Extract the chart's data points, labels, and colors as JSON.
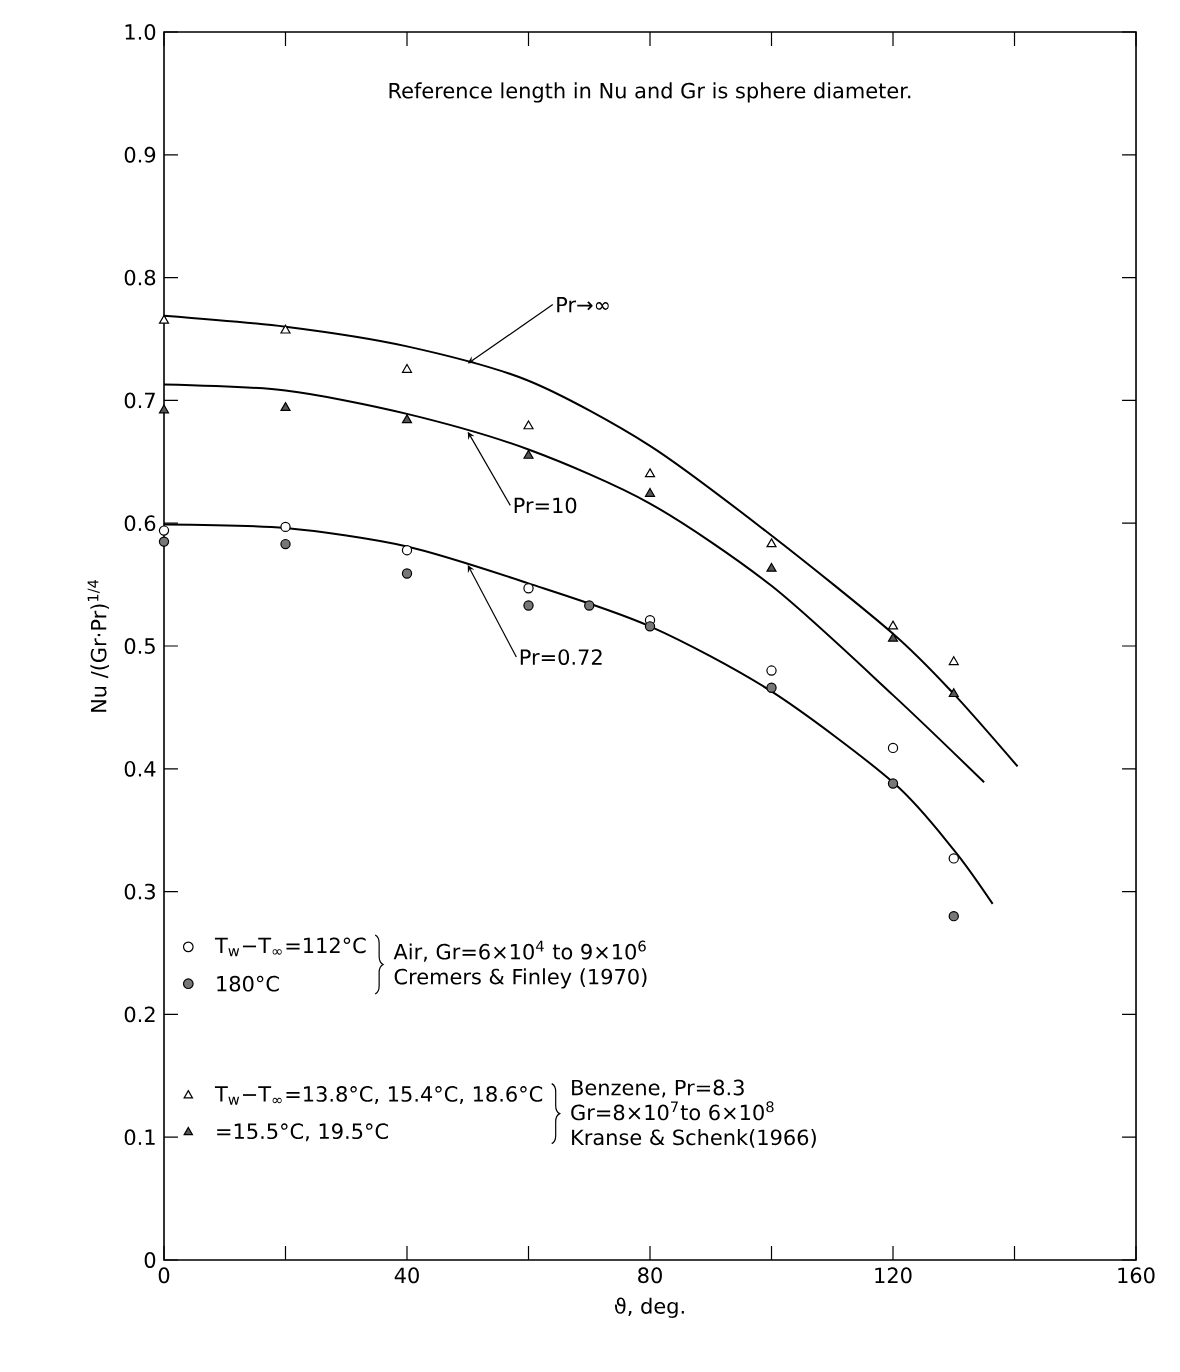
{
  "chart_data": {
    "type": "scatter",
    "xlabel": "ϑ, deg.",
    "ylabel": "Nu /(Gr·Pr)$^{1/4}$",
    "xlim": [
      0,
      160
    ],
    "ylim": [
      0,
      1.0
    ],
    "xticks": [
      0,
      {
        "value": 20,
        "label": null
      },
      40,
      {
        "value": 60,
        "label": null
      },
      80,
      {
        "value": 100,
        "label": null
      },
      120,
      {
        "value": 140,
        "label": null
      },
      160
    ],
    "yticks": [
      0,
      0.1,
      0.2,
      0.3,
      0.4,
      0.5,
      0.6,
      0.7,
      0.8,
      0.9,
      {
        "value": 1.0,
        "label": "1.0"
      }
    ],
    "grid": false,
    "legend": "bottom left",
    "annotations": [
      "Reference  length in Nu and Gr is sphere diameter.",
      "Air, Gr=6×10$^{4}$ to 9×10$^{6}$",
      "Cremers & Finley (1970)",
      "Benzene, Pr=8.3",
      "Gr=8×10$^{7}$to 6×10$^{8}$",
      "Kranse & Schenk(1966)"
    ],
    "series": [
      {
        "type": "line",
        "name": "Pr→∞",
        "color": "#000000",
        "marker": "none",
        "line_style": "solid",
        "x": [
          0,
          20,
          40,
          60,
          80,
          100,
          120,
          130,
          140.5
        ],
        "values": [
          0.769,
          0.76,
          0.744,
          0.716,
          0.663,
          0.59,
          0.51,
          0.461,
          0.402
        ]
      },
      {
        "type": "line",
        "name": "Pr=10",
        "color": "#000000",
        "marker": "none",
        "line_style": "solid",
        "x": [
          0,
          20,
          40,
          60,
          80,
          100,
          120,
          135
        ],
        "values": [
          0.713,
          0.708,
          0.689,
          0.66,
          0.616,
          0.549,
          0.46,
          0.389
        ]
      },
      {
        "type": "line",
        "name": "Pr=0.72",
        "color": "#000000",
        "marker": "none",
        "line_style": "solid",
        "x": [
          0,
          20,
          40,
          60,
          80,
          100,
          120,
          130,
          136.4
        ],
        "values": [
          0.599,
          0.596,
          0.581,
          0.551,
          0.516,
          0.463,
          0.389,
          0.334,
          0.29
        ]
      },
      {
        "name": "T$_{w}$−T$_{∞}$=112°C",
        "color": "#000000",
        "marker": "circle",
        "x": [
          0,
          20,
          40,
          60,
          80,
          100,
          120,
          130
        ],
        "values": [
          0.594,
          0.597,
          0.578,
          0.547,
          0.521,
          0.48,
          0.417,
          0.327
        ]
      },
      {
        "name": "180°C",
        "color": "#777777",
        "marker": "circle",
        "x": [
          0,
          20,
          40,
          60,
          70,
          80,
          100,
          120,
          130
        ],
        "values": [
          0.585,
          0.583,
          0.559,
          0.533,
          0.533,
          0.516,
          0.466,
          0.388,
          0.28
        ]
      },
      {
        "name": "T$_{w}$−T$_{∞}$=13.8°C, 15.4°C, 18.6°C",
        "color": "#000000",
        "marker": "triangle",
        "x": [
          0,
          20,
          40,
          60,
          80,
          100,
          120,
          130
        ],
        "values": [
          0.765,
          0.757,
          0.725,
          0.679,
          0.64,
          0.583,
          0.516,
          0.487
        ]
      },
      {
        "name": "=15.5°C, 19.5°C",
        "color": "#555555",
        "marker": "triangle",
        "x": [
          0,
          20,
          40,
          60,
          80,
          100,
          120,
          130
        ],
        "values": [
          0.692,
          0.694,
          0.684,
          0.655,
          0.624,
          0.563,
          0.506,
          0.461
        ]
      }
    ]
  }
}
